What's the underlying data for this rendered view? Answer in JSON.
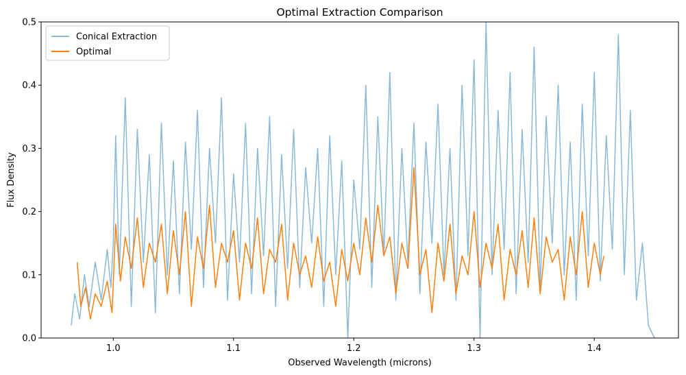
{
  "chart_data": {
    "type": "line",
    "title": "Optimal Extraction Comparison",
    "xlabel": "Observed Wavelength (microns)",
    "ylabel": "Flux Density",
    "xlim": [
      0.94,
      1.47
    ],
    "ylim": [
      0,
      0.5
    ],
    "x_ticks": [
      {
        "value": 1.0,
        "label": "1.0"
      },
      {
        "value": 1.1,
        "label": "1.1"
      },
      {
        "value": 1.2,
        "label": "1.2"
      },
      {
        "value": 1.3,
        "label": "1.3"
      },
      {
        "value": 1.4,
        "label": "1.4"
      }
    ],
    "y_ticks": [
      {
        "value": 0.0,
        "label": "0.0"
      },
      {
        "value": 0.1,
        "label": "0.1"
      },
      {
        "value": 0.2,
        "label": "0.2"
      },
      {
        "value": 0.3,
        "label": "0.3"
      },
      {
        "value": 0.4,
        "label": "0.4"
      },
      {
        "value": 0.5,
        "label": "0.5"
      }
    ],
    "grid": false,
    "legend_position": "top-left",
    "series": [
      {
        "name": "Conical Extraction",
        "color": "#8ab8d8",
        "x": [
          0.965,
          0.968,
          0.972,
          0.976,
          0.98,
          0.985,
          0.99,
          0.995,
          0.998,
          1.0,
          1.002,
          1.005,
          1.01,
          1.015,
          1.02,
          1.025,
          1.03,
          1.035,
          1.04,
          1.045,
          1.05,
          1.055,
          1.06,
          1.065,
          1.07,
          1.075,
          1.08,
          1.085,
          1.09,
          1.095,
          1.1,
          1.105,
          1.11,
          1.115,
          1.12,
          1.125,
          1.13,
          1.135,
          1.14,
          1.145,
          1.15,
          1.155,
          1.16,
          1.165,
          1.17,
          1.175,
          1.18,
          1.185,
          1.19,
          1.195,
          1.2,
          1.205,
          1.21,
          1.215,
          1.22,
          1.225,
          1.23,
          1.235,
          1.24,
          1.245,
          1.25,
          1.255,
          1.26,
          1.265,
          1.27,
          1.275,
          1.28,
          1.285,
          1.29,
          1.295,
          1.3,
          1.305,
          1.31,
          1.315,
          1.32,
          1.325,
          1.33,
          1.335,
          1.34,
          1.345,
          1.35,
          1.355,
          1.36,
          1.365,
          1.37,
          1.375,
          1.38,
          1.385,
          1.39,
          1.395,
          1.4,
          1.405,
          1.41,
          1.415,
          1.42,
          1.425,
          1.43,
          1.435,
          1.44,
          1.445,
          1.45
        ],
        "y": [
          0.02,
          0.07,
          0.03,
          0.1,
          0.05,
          0.12,
          0.06,
          0.14,
          0.08,
          0.15,
          0.32,
          0.1,
          0.38,
          0.05,
          0.33,
          0.12,
          0.29,
          0.04,
          0.34,
          0.1,
          0.28,
          0.07,
          0.31,
          0.14,
          0.36,
          0.08,
          0.3,
          0.15,
          0.38,
          0.06,
          0.26,
          0.12,
          0.34,
          0.07,
          0.3,
          0.13,
          0.35,
          0.05,
          0.29,
          0.11,
          0.33,
          0.08,
          0.27,
          0.15,
          0.3,
          0.05,
          0.32,
          0.1,
          0.28,
          0.0,
          0.25,
          0.14,
          0.4,
          0.08,
          0.35,
          0.13,
          0.42,
          0.06,
          0.3,
          0.12,
          0.34,
          0.07,
          0.31,
          0.15,
          0.37,
          0.1,
          0.3,
          0.06,
          0.4,
          0.13,
          0.44,
          0.0,
          0.5,
          0.1,
          0.36,
          0.14,
          0.42,
          0.07,
          0.33,
          0.12,
          0.46,
          0.08,
          0.35,
          0.15,
          0.4,
          0.1,
          0.31,
          0.06,
          0.37,
          0.13,
          0.42,
          0.09,
          0.32,
          0.14,
          0.48,
          0.1,
          0.36,
          0.06,
          0.15,
          0.02,
          0.0
        ]
      },
      {
        "name": "Optimal",
        "color": "#ff7f0e",
        "x": [
          0.97,
          0.973,
          0.977,
          0.981,
          0.985,
          0.99,
          0.995,
          0.999,
          1.002,
          1.006,
          1.01,
          1.015,
          1.02,
          1.025,
          1.03,
          1.035,
          1.04,
          1.045,
          1.05,
          1.055,
          1.06,
          1.065,
          1.07,
          1.075,
          1.08,
          1.085,
          1.09,
          1.095,
          1.1,
          1.105,
          1.11,
          1.115,
          1.12,
          1.125,
          1.13,
          1.135,
          1.14,
          1.145,
          1.15,
          1.155,
          1.16,
          1.165,
          1.17,
          1.175,
          1.18,
          1.185,
          1.19,
          1.195,
          1.2,
          1.205,
          1.21,
          1.215,
          1.22,
          1.225,
          1.23,
          1.235,
          1.24,
          1.245,
          1.25,
          1.255,
          1.26,
          1.265,
          1.27,
          1.275,
          1.28,
          1.285,
          1.29,
          1.295,
          1.3,
          1.305,
          1.31,
          1.315,
          1.32,
          1.325,
          1.33,
          1.335,
          1.34,
          1.345,
          1.35,
          1.355,
          1.36,
          1.365,
          1.37,
          1.375,
          1.38,
          1.385,
          1.39,
          1.395,
          1.4,
          1.405,
          1.408
        ],
        "y": [
          0.12,
          0.05,
          0.08,
          0.03,
          0.07,
          0.05,
          0.09,
          0.04,
          0.18,
          0.09,
          0.16,
          0.11,
          0.19,
          0.08,
          0.15,
          0.12,
          0.18,
          0.07,
          0.17,
          0.1,
          0.2,
          0.05,
          0.16,
          0.11,
          0.21,
          0.08,
          0.15,
          0.12,
          0.17,
          0.06,
          0.15,
          0.11,
          0.19,
          0.07,
          0.14,
          0.12,
          0.18,
          0.06,
          0.15,
          0.1,
          0.13,
          0.08,
          0.16,
          0.09,
          0.12,
          0.05,
          0.14,
          0.09,
          0.15,
          0.1,
          0.19,
          0.12,
          0.21,
          0.13,
          0.16,
          0.07,
          0.15,
          0.11,
          0.27,
          0.1,
          0.14,
          0.04,
          0.15,
          0.09,
          0.18,
          0.07,
          0.13,
          0.1,
          0.2,
          0.08,
          0.15,
          0.11,
          0.18,
          0.06,
          0.14,
          0.1,
          0.17,
          0.08,
          0.19,
          0.07,
          0.16,
          0.12,
          0.14,
          0.06,
          0.16,
          0.1,
          0.2,
          0.08,
          0.15,
          0.1,
          0.13
        ]
      }
    ]
  }
}
